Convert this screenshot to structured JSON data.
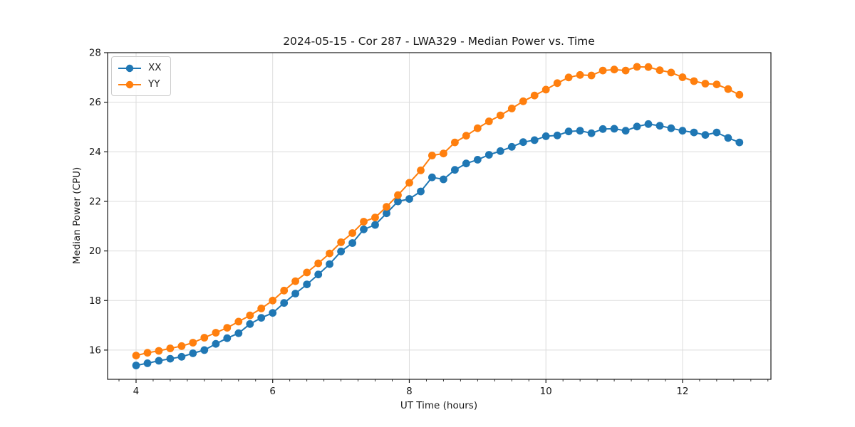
{
  "chart_data": {
    "type": "line",
    "title": "2024-05-15 - Cor 287 - LWA329 - Median Power vs. Time",
    "xlabel": "UT Time (hours)",
    "ylabel": "Median Power (CPU)",
    "xlim": [
      3.583,
      13.294
    ],
    "ylim": [
      14.82,
      28.0
    ],
    "xticks": [
      4,
      6,
      8,
      10,
      12
    ],
    "yticks": [
      16,
      18,
      20,
      22,
      24,
      26,
      28
    ],
    "minor_xtick_step": 0.25,
    "grid": true,
    "legend_position": "upper left",
    "grid_color": "#dcdcdc",
    "axis_color": "#1a1a1a",
    "x": [
      4,
      4.167,
      4.333,
      4.5,
      4.667,
      4.833,
      5,
      5.167,
      5.333,
      5.5,
      5.667,
      5.833,
      6,
      6.167,
      6.333,
      6.5,
      6.667,
      6.833,
      7,
      7.167,
      7.333,
      7.5,
      7.667,
      7.833,
      8,
      8.167,
      8.333,
      8.5,
      8.667,
      8.833,
      9,
      9.167,
      9.333,
      9.5,
      9.667,
      9.833,
      10,
      10.167,
      10.333,
      10.5,
      10.667,
      10.833,
      11,
      11.167,
      11.333,
      11.5,
      11.667,
      11.833,
      12,
      12.167,
      12.333,
      12.5,
      12.667,
      12.833
    ],
    "series": [
      {
        "name": "XX",
        "color": "#1f77b4",
        "values": [
          15.38,
          15.47,
          15.57,
          15.65,
          15.73,
          15.87,
          16.0,
          16.25,
          16.48,
          16.68,
          17.05,
          17.3,
          17.5,
          17.9,
          18.28,
          18.65,
          19.05,
          19.47,
          19.98,
          20.32,
          20.87,
          21.05,
          21.52,
          22.0,
          22.1,
          22.4,
          22.97,
          22.89,
          23.27,
          23.53,
          23.68,
          23.88,
          24.03,
          24.2,
          24.39,
          24.47,
          24.63,
          24.66,
          24.82,
          24.85,
          24.75,
          24.92,
          24.93,
          24.85,
          25.02,
          25.12,
          25.05,
          24.95,
          24.85,
          24.78,
          24.68,
          24.78,
          24.56,
          24.38
        ]
      },
      {
        "name": "YY",
        "color": "#ff7f0e",
        "values": [
          15.78,
          15.89,
          15.97,
          16.07,
          16.16,
          16.3,
          16.5,
          16.7,
          16.9,
          17.15,
          17.4,
          17.68,
          18.0,
          18.4,
          18.78,
          19.13,
          19.5,
          19.9,
          20.35,
          20.72,
          21.18,
          21.35,
          21.78,
          22.25,
          22.75,
          23.25,
          23.85,
          23.93,
          24.38,
          24.65,
          24.95,
          25.23,
          25.47,
          25.75,
          26.04,
          26.27,
          26.51,
          26.77,
          27.0,
          27.1,
          27.08,
          27.28,
          27.32,
          27.28,
          27.43,
          27.42,
          27.29,
          27.2,
          27.01,
          26.85,
          26.75,
          26.72,
          26.53,
          26.3
        ]
      }
    ]
  }
}
